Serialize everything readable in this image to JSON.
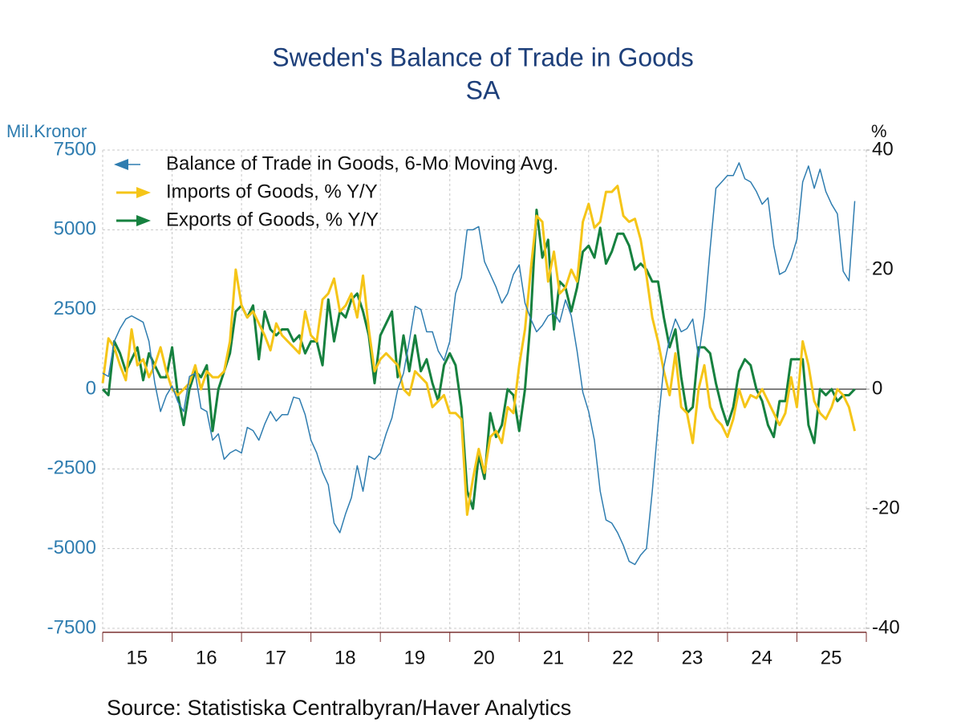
{
  "chart_data": {
    "type": "line",
    "title": "Sweden's Balance of Trade in Goods",
    "subtitle": "SA",
    "y_label": "Mil.Kronor",
    "y2_label": "%",
    "source": "Source:  Statistiska Centralbyran/Haver Analytics",
    "categories": [
      null,
      null,
      null,
      null,
      null,
      null,
      "15",
      null,
      null,
      null,
      null,
      null,
      null,
      null,
      null,
      null,
      null,
      null,
      "16",
      null,
      null,
      null,
      null,
      null,
      null,
      null,
      null,
      null,
      null,
      null,
      "17",
      null,
      null,
      null,
      null,
      null,
      null,
      null,
      null,
      null,
      null,
      null,
      "18",
      null,
      null,
      null,
      null,
      null,
      null,
      null,
      null,
      null,
      null,
      null,
      "19",
      null,
      null,
      null,
      null,
      null,
      null,
      null,
      null,
      null,
      null,
      null,
      "20",
      null,
      null,
      null,
      null,
      null,
      null,
      null,
      null,
      null,
      null,
      null,
      "21",
      null,
      null,
      null,
      null,
      null,
      null,
      null,
      null,
      null,
      null,
      null,
      "22",
      null,
      null,
      null,
      null,
      null,
      null,
      null,
      null,
      null,
      null,
      null,
      "23",
      null,
      null,
      null,
      null,
      null,
      null,
      null,
      null,
      null,
      null,
      null,
      "24",
      null,
      null,
      null,
      null,
      null,
      null,
      null,
      null,
      null,
      null,
      null,
      "25",
      null,
      null,
      null,
      null
    ],
    "ylim": [
      -7500,
      7500
    ],
    "yticks": [
      -7500,
      -5000,
      -2500,
      0,
      2500,
      5000,
      7500
    ],
    "y2lim": [
      -40,
      40
    ],
    "y2ticks": [
      -40,
      -20,
      0,
      20,
      40
    ],
    "grid": true,
    "legend": "upper left",
    "series": [
      {
        "name": "Balance of Trade in Goods, 6-Mo Moving Avg.",
        "color": "#2f7db0",
        "axis": "y",
        "width": 1.5,
        "values": [
          500,
          400,
          1500,
          1900,
          2200,
          2300,
          2200,
          2100,
          1500,
          200,
          -700,
          -200,
          100,
          -400,
          -700,
          400,
          500,
          -600,
          -700,
          -1600,
          -1400,
          -2200,
          -2000,
          -1900,
          -2000,
          -1200,
          -1300,
          -1600,
          -1100,
          -700,
          -1000,
          -800,
          -800,
          -250,
          -300,
          -800,
          -1600,
          -2000,
          -2600,
          -3000,
          -4200,
          -4500,
          -3900,
          -3400,
          -2400,
          -3200,
          -2100,
          -2200,
          -2000,
          -1400,
          -900,
          0,
          500,
          1500,
          2600,
          2500,
          1800,
          1800,
          1200,
          900,
          1500,
          3000,
          3500,
          5000,
          5000,
          5100,
          4000,
          3600,
          3200,
          2700,
          3000,
          3600,
          3900,
          2700,
          2200,
          1800,
          2000,
          2300,
          2400,
          2100,
          2800,
          2300,
          1200,
          -100,
          -700,
          -1600,
          -3200,
          -4100,
          -4200,
          -4500,
          -4900,
          -5400,
          -5500,
          -5200,
          -5000,
          -3200,
          -1100,
          700,
          1600,
          2200,
          1800,
          1900,
          2200,
          1000,
          2300,
          4400,
          6300,
          6500,
          6700,
          6700,
          7100,
          6600,
          6500,
          6200,
          5800,
          6000,
          4500,
          3600,
          3700,
          4100,
          4700,
          6500,
          7000,
          6300,
          6900,
          6200,
          5800,
          5500,
          3700,
          3400,
          5900
        ]
      },
      {
        "name": "Imports of Goods, % Y/Y",
        "color": "#f5c518",
        "axis": "y2",
        "width": 3,
        "values": [
          1,
          8.5,
          7,
          4,
          1.5,
          10,
          4,
          5,
          2,
          4,
          7,
          3,
          0,
          -1,
          0,
          1,
          4,
          0,
          3,
          2,
          2,
          3,
          8,
          20,
          14,
          12,
          13,
          11,
          9,
          6.5,
          11,
          9,
          8,
          7,
          6,
          13,
          9,
          8,
          15,
          16,
          18.5,
          13,
          14,
          16,
          12,
          19,
          10,
          3,
          5,
          6,
          5,
          4,
          0,
          -1,
          3,
          2,
          1,
          -3,
          -2,
          -1,
          -4,
          -4,
          -5,
          -21,
          -15,
          -10,
          -14,
          -8,
          -7,
          -9,
          -3,
          -4,
          4,
          10,
          20,
          29,
          28,
          18,
          23,
          16,
          17,
          20,
          18,
          28,
          31,
          27,
          28,
          33,
          33,
          34,
          29,
          28,
          28.5,
          25,
          19,
          12,
          8,
          3,
          -1,
          6,
          -3,
          -4,
          -9,
          0,
          4,
          -3,
          -5,
          -6,
          -8,
          -5,
          0,
          -3,
          -1,
          -1.5,
          0,
          -2,
          -4,
          -6,
          -4,
          2,
          -3,
          8,
          4,
          -2,
          -4,
          -5,
          -3,
          0,
          -1,
          -3,
          -7
        ]
      },
      {
        "name": "Exports of Goods, % Y/Y",
        "color": "#16813f",
        "axis": "y2",
        "width": 3,
        "values": [
          0,
          -1,
          8,
          6,
          3,
          5,
          7,
          1.5,
          6,
          4,
          2,
          2,
          7,
          -1,
          -6,
          0,
          3,
          2,
          4,
          -7,
          0,
          3,
          6,
          13,
          14,
          12,
          14,
          5,
          13,
          10,
          9,
          10,
          10,
          8,
          9,
          6,
          8,
          8,
          4,
          15,
          8,
          13,
          12,
          15,
          16,
          13,
          9,
          1,
          9,
          11,
          13,
          2,
          9,
          3,
          9,
          3,
          5,
          1,
          -2,
          4,
          6,
          4,
          -3,
          -17,
          -20,
          -11,
          -15,
          -4,
          -8,
          -6,
          0,
          -1,
          -7,
          0,
          12,
          30,
          22,
          25,
          10,
          18,
          17,
          13,
          17,
          23,
          24,
          22,
          27,
          21,
          23,
          26,
          26,
          24,
          20,
          21,
          20,
          18,
          18,
          12,
          7,
          10,
          2,
          -4,
          -3,
          7,
          7,
          6,
          1,
          -3,
          -6,
          -3,
          3,
          5,
          4,
          0,
          -2,
          -6,
          -8,
          -2,
          -2,
          5,
          5,
          5,
          -6,
          -9,
          0,
          -1,
          0,
          -2,
          -1,
          -1,
          0
        ]
      }
    ]
  }
}
